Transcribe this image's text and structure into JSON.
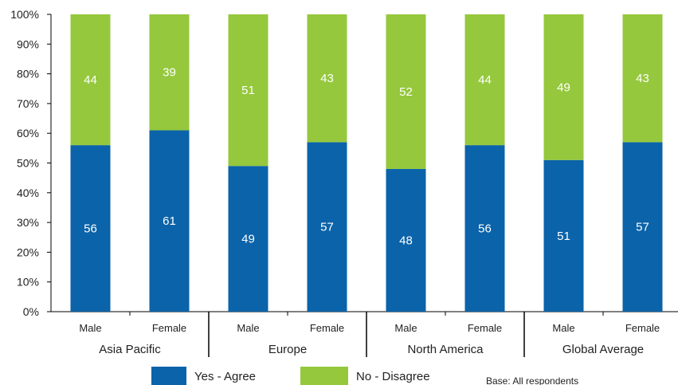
{
  "chart_data": {
    "type": "bar",
    "stacked": true,
    "categories": [
      "Male",
      "Female",
      "Male",
      "Female",
      "Male",
      "Female",
      "Male",
      "Female"
    ],
    "groups": [
      {
        "label": "Asia Pacific"
      },
      {
        "label": "Europe"
      },
      {
        "label": "North America"
      },
      {
        "label": "Global Average"
      }
    ],
    "series": [
      {
        "name": "Yes - Agree",
        "color": "#0b63a9",
        "values": [
          56,
          61,
          49,
          57,
          48,
          56,
          51,
          57
        ]
      },
      {
        "name": "No - Disagree",
        "color": "#95c83d",
        "values": [
          44,
          39,
          51,
          43,
          52,
          44,
          49,
          43
        ]
      }
    ],
    "ylim": [
      0,
      100
    ],
    "yticks": [
      "0%",
      "10%",
      "20%",
      "30%",
      "40%",
      "50%",
      "60%",
      "70%",
      "80%",
      "90%",
      "100%"
    ],
    "grid": false,
    "legend_position": "bottom",
    "note": "Base: All respondents",
    "title": "",
    "xlabel": "",
    "ylabel": ""
  }
}
